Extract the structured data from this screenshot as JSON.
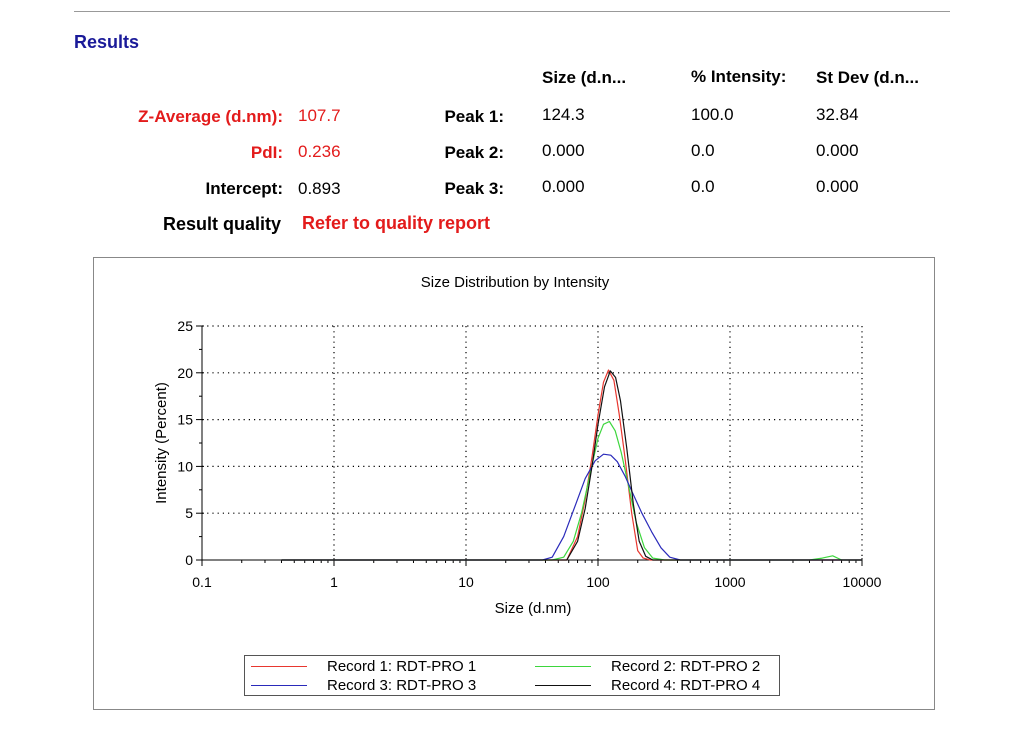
{
  "header": {
    "title": "Results"
  },
  "summary": {
    "z_average": {
      "label": "Z-Average (d.nm):",
      "value": "107.7"
    },
    "pdi": {
      "label": "PdI:",
      "value": "0.236"
    },
    "intercept": {
      "label": "Intercept:",
      "value": "0.893"
    },
    "result_quality": {
      "label": "Result quality",
      "value": "Refer to quality report"
    }
  },
  "peaks_table": {
    "columns": [
      "Size (d.n...",
      "% Intensity:",
      "St Dev (d.n..."
    ],
    "rows": [
      {
        "label": "Peak 1:",
        "values": [
          "124.3",
          "100.0",
          "32.84"
        ]
      },
      {
        "label": "Peak 2:",
        "values": [
          "0.000",
          "0.0",
          "0.000"
        ]
      },
      {
        "label": "Peak 3:",
        "values": [
          "0.000",
          "0.0",
          "0.000"
        ]
      }
    ]
  },
  "colors": {
    "title": "#1a1a99",
    "highlight": "#e31b1b"
  },
  "chart_data": {
    "type": "line",
    "title": "Size Distribution by Intensity",
    "xlabel": "Size (d.nm)",
    "ylabel": "Intensity (Percent)",
    "xscale": "log",
    "xlim": [
      0.1,
      10000
    ],
    "ylim": [
      0,
      25
    ],
    "x_ticks": [
      "0.1",
      "1",
      "10",
      "100",
      "1000",
      "10000"
    ],
    "y_ticks": [
      "0",
      "5",
      "10",
      "15",
      "20",
      "25"
    ],
    "grid": "dotted",
    "legend_position": "bottom",
    "series": [
      {
        "name": "Record 1: RDT-PRO 1",
        "color": "#e8372f",
        "x": [
          0.4,
          45,
          58,
          70,
          80,
          90,
          100,
          110,
          120,
          132,
          145,
          160,
          180,
          200,
          220,
          250,
          10000
        ],
        "y": [
          0,
          0,
          0,
          2.5,
          6.5,
          11,
          15.5,
          19,
          20.3,
          19.2,
          15.5,
          11,
          5,
          1,
          0.2,
          0,
          0
        ]
      },
      {
        "name": "Record 2: RDT-PRO 2",
        "color": "#3dd63d",
        "x": [
          0.4,
          45,
          55,
          65,
          75,
          88,
          100,
          110,
          122,
          135,
          150,
          170,
          195,
          225,
          260,
          320,
          4000,
          5000,
          6000,
          7000,
          10000
        ],
        "y": [
          0,
          0,
          0.3,
          2,
          5,
          9.5,
          13,
          14.5,
          14.8,
          13.8,
          11.5,
          8,
          4,
          1.3,
          0.2,
          0,
          0,
          0.2,
          0.45,
          0,
          0
        ]
      },
      {
        "name": "Record 3: RDT-PRO 3",
        "color": "#2a2aba",
        "x": [
          0.4,
          38,
          45,
          55,
          68,
          80,
          95,
          110,
          125,
          140,
          160,
          185,
          215,
          255,
          300,
          350,
          420,
          10000
        ],
        "y": [
          0,
          0,
          0.3,
          2.5,
          6,
          8.7,
          10.6,
          11.3,
          11.2,
          10.5,
          9,
          7,
          5,
          3,
          1.3,
          0.3,
          0,
          0
        ]
      },
      {
        "name": "Record 4: RDT-PRO 4",
        "color": "#111111",
        "x": [
          0.4,
          45,
          58,
          70,
          80,
          90,
          100,
          112,
          124,
          136,
          148,
          165,
          185,
          205,
          230,
          260,
          10000
        ],
        "y": [
          0,
          0,
          0,
          2,
          5.5,
          10,
          14.5,
          18.5,
          20.2,
          19.5,
          17,
          12,
          6,
          2,
          0.4,
          0,
          0
        ]
      }
    ]
  }
}
